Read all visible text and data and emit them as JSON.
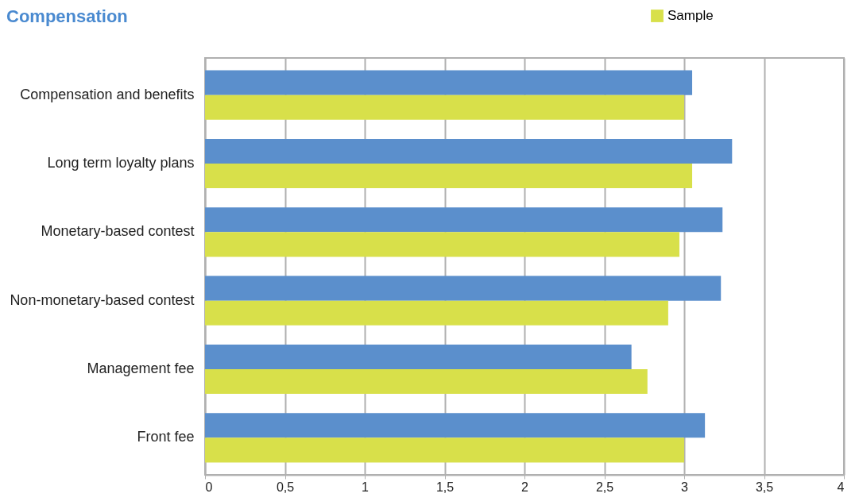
{
  "chart_data": {
    "type": "bar",
    "orientation": "horizontal",
    "title": "Compensation",
    "categories": [
      "Compensation and benefits",
      "Long term loyalty plans",
      "Monetary-based contest",
      "Non-monetary-based contest",
      "Management fee",
      "Front fee"
    ],
    "series": [
      {
        "color": "#5b8fcc",
        "values": [
          3.05,
          3.3,
          3.24,
          3.23,
          2.67,
          3.13
        ]
      },
      {
        "name": "Sample",
        "color": "#d8e04a",
        "values": [
          3.0,
          3.05,
          2.97,
          2.9,
          2.77,
          3.0
        ]
      }
    ],
    "xlim": [
      0,
      4
    ],
    "xticks": [
      0,
      {
        "value": 0.5,
        "label": "0,5"
      },
      1,
      {
        "value": 1.5,
        "label": "1,5"
      },
      2,
      {
        "value": 2.5,
        "label": "2,5"
      },
      3,
      {
        "value": 3.5,
        "label": "3,5"
      },
      4
    ],
    "grid": "x",
    "legend": "top right"
  }
}
